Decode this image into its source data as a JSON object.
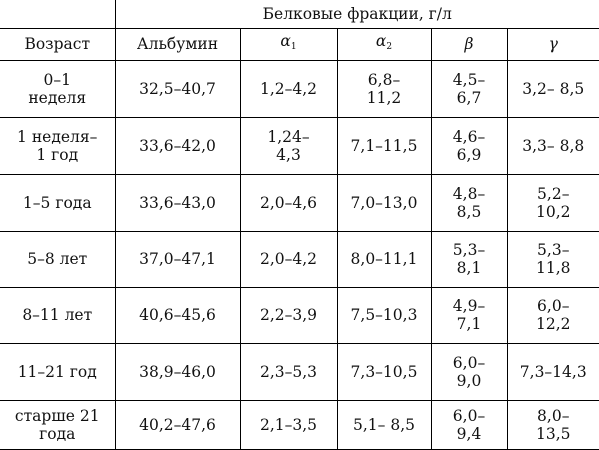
{
  "table": {
    "group_header": "Белковые фракции, г/л",
    "headers": {
      "age": "Возраст",
      "albumin": "Альбумин",
      "alpha1": {
        "symbol": "α",
        "sub": "1"
      },
      "alpha2": {
        "symbol": "α",
        "sub": "2"
      },
      "beta": "β",
      "gamma": "γ"
    },
    "rows": [
      {
        "age": "0–1\nнеделя",
        "albumin": "32,5–40,7",
        "alpha1": "1,2–4,2",
        "alpha2": "6,8–\n11,2",
        "beta": "4,5–\n6,7",
        "gamma": "3,2– 8,5"
      },
      {
        "age": "1 неделя–\n1 год",
        "albumin": "33,6–42,0",
        "alpha1": "1,24–\n4,3",
        "alpha2": "7,1–11,5",
        "beta": "4,6–\n6,9",
        "gamma": "3,3– 8,8"
      },
      {
        "age": "1–5 года",
        "albumin": "33,6–43,0",
        "alpha1": "2,0–4,6",
        "alpha2": "7,0–13,0",
        "beta": "4,8–\n8,5",
        "gamma": "5,2–\n10,2"
      },
      {
        "age": "5–8 лет",
        "albumin": "37,0–47,1",
        "alpha1": "2,0–4,2",
        "alpha2": "8,0–11,1",
        "beta": "5,3–\n8,1",
        "gamma": "5,3–\n11,8"
      },
      {
        "age": "8–11 лет",
        "albumin": "40,6–45,6",
        "alpha1": "2,2–3,9",
        "alpha2": "7,5–10,3",
        "beta": "4,9–\n7,1",
        "gamma": "6,0–\n12,2"
      },
      {
        "age": "11–21 год",
        "albumin": "38,9–46,0",
        "alpha1": "2,3–5,3",
        "alpha2": "7,3–10,5",
        "beta": "6,0–\n9,0",
        "gamma": "7,3–14,3"
      },
      {
        "age": "старше 21\nгода",
        "albumin": "40,2–47,6",
        "alpha1": "2,1–3,5",
        "alpha2": "5,1– 8,5",
        "beta": "6,0–\n9,4",
        "gamma": "8,0–\n13,5"
      }
    ]
  }
}
